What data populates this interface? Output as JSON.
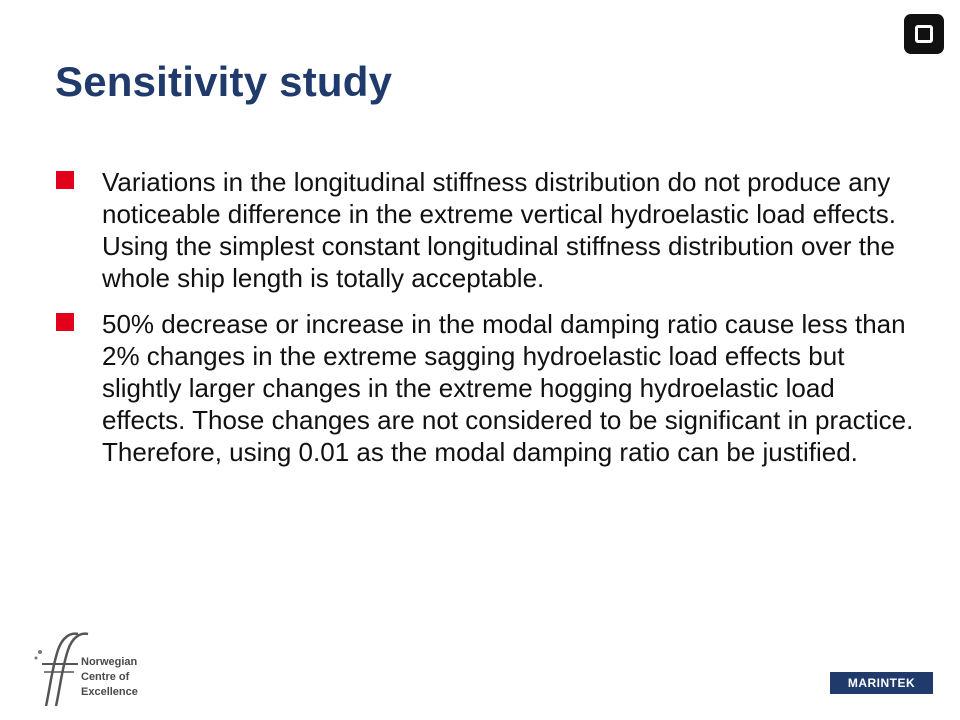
{
  "slide": {
    "title": "Sensitivity study",
    "bullets": [
      "Variations in the longitudinal stiffness distribution do not produce any noticeable difference in the extreme vertical hydroelastic load effects. Using the simplest constant longitudinal stiffness distribution over the whole ship length is totally acceptable.",
      "50% decrease or increase in the modal damping ratio cause less than 2% changes in the extreme sagging hydroelastic load effects but slightly larger changes in the extreme hogging hydroelastic load effects. Those changes are not considered to be significant in practice. Therefore, using 0.01 as the modal damping ratio can be justified."
    ]
  },
  "footer": {
    "ncoe_lines": [
      "Norwegian",
      "Centre of",
      "Excellence"
    ],
    "marintek_label": "MARINTEK"
  },
  "colors": {
    "title": "#1f3a6b",
    "bullet_marker": "#e3001b",
    "marintek_bg": "#1f3a6b"
  },
  "icons": {
    "corner": "rounded-square-logo-icon",
    "footer_left": "ncoe-ff-logo-icon"
  }
}
